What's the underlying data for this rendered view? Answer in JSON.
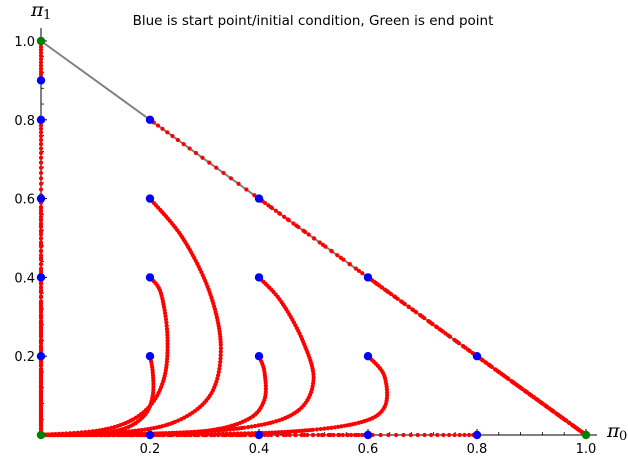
{
  "chart_data": {
    "type": "scatter",
    "title": "Blue is start point/initial condition, Green is end point",
    "xlabel": "π",
    "xlabel_sub": "0",
    "ylabel": "π",
    "ylabel_sub": "1",
    "xlim": [
      0,
      1.0
    ],
    "ylim": [
      0,
      1.0
    ],
    "x_ticks": [
      {
        "value": 0.2,
        "label": "0.2"
      },
      {
        "value": 0.4,
        "label": "0.4"
      },
      {
        "value": 0.6,
        "label": "0.6"
      },
      {
        "value": 0.8,
        "label": "0.8"
      },
      {
        "value": 1.0,
        "label": "1.0"
      }
    ],
    "y_ticks": [
      {
        "value": 0.2,
        "label": "0.2"
      },
      {
        "value": 0.4,
        "label": "0.4"
      },
      {
        "value": 0.6,
        "label": "0.6"
      },
      {
        "value": 0.8,
        "label": "0.8"
      },
      {
        "value": 1.0,
        "label": "1.0"
      }
    ],
    "simplex_edge": {
      "from": [
        0,
        1.0
      ],
      "to": [
        1.0,
        0
      ],
      "color": "#808080"
    },
    "start_points": {
      "color": "#0000ff",
      "points": [
        [
          0,
          0.2
        ],
        [
          0,
          0.4
        ],
        [
          0,
          0.6
        ],
        [
          0,
          0.8
        ],
        [
          0,
          0.9
        ],
        [
          0.2,
          0.2
        ],
        [
          0.2,
          0.4
        ],
        [
          0.2,
          0.6
        ],
        [
          0.2,
          0.8
        ],
        [
          0.4,
          0.2
        ],
        [
          0.4,
          0.4
        ],
        [
          0.4,
          0.6
        ],
        [
          0.6,
          0.2
        ],
        [
          0.6,
          0.4
        ],
        [
          0.8,
          0.2
        ],
        [
          0.2,
          0
        ],
        [
          0.4,
          0
        ],
        [
          0.6,
          0
        ],
        [
          0.8,
          0
        ]
      ]
    },
    "end_points": {
      "color": "#008000",
      "points": [
        [
          0,
          1.0
        ],
        [
          0,
          0
        ],
        [
          1.0,
          0
        ]
      ]
    },
    "trajectories": {
      "color": "#ff0000",
      "paths": [
        [
          [
            0.2,
            0.2
          ],
          [
            0.205,
            0.16
          ],
          [
            0.205,
            0.1
          ],
          [
            0.19,
            0.05
          ],
          [
            0.15,
            0.015
          ],
          [
            0.08,
            0.003
          ],
          [
            0.0,
            0.0
          ]
        ],
        [
          [
            0.2,
            0.4
          ],
          [
            0.22,
            0.36
          ],
          [
            0.232,
            0.25
          ],
          [
            0.225,
            0.14
          ],
          [
            0.19,
            0.06
          ],
          [
            0.12,
            0.015
          ],
          [
            0.0,
            0.0
          ]
        ],
        [
          [
            0.2,
            0.6
          ],
          [
            0.26,
            0.5
          ],
          [
            0.31,
            0.36
          ],
          [
            0.33,
            0.22
          ],
          [
            0.31,
            0.1
          ],
          [
            0.24,
            0.03
          ],
          [
            0.13,
            0.005
          ],
          [
            0.0,
            0.0
          ]
        ],
        [
          [
            0.4,
            0.2
          ],
          [
            0.41,
            0.16
          ],
          [
            0.41,
            0.09
          ],
          [
            0.38,
            0.04
          ],
          [
            0.3,
            0.01
          ],
          [
            0.15,
            0.002
          ],
          [
            0.0,
            0.0
          ]
        ],
        [
          [
            0.4,
            0.4
          ],
          [
            0.44,
            0.34
          ],
          [
            0.48,
            0.24
          ],
          [
            0.5,
            0.14
          ],
          [
            0.47,
            0.06
          ],
          [
            0.38,
            0.02
          ],
          [
            0.2,
            0.003
          ],
          [
            0.0,
            0.0
          ]
        ],
        [
          [
            0.6,
            0.2
          ],
          [
            0.63,
            0.15
          ],
          [
            0.63,
            0.07
          ],
          [
            0.58,
            0.03
          ],
          [
            0.45,
            0.008
          ],
          [
            0.25,
            0.002
          ],
          [
            0.0,
            0.0
          ]
        ],
        [
          [
            0.2,
            0.8
          ],
          [
            1.0,
            0.0
          ]
        ],
        [
          [
            0.4,
            0.6
          ],
          [
            1.0,
            0.0
          ]
        ],
        [
          [
            0.6,
            0.4
          ],
          [
            1.0,
            0.0
          ]
        ],
        [
          [
            0.8,
            0.2
          ],
          [
            1.0,
            0.0
          ]
        ],
        [
          [
            0.2,
            0.0
          ],
          [
            0.0,
            0.0
          ]
        ],
        [
          [
            0.4,
            0.0
          ],
          [
            0.0,
            0.0
          ]
        ],
        [
          [
            0.6,
            0.0
          ],
          [
            0.0,
            0.0
          ]
        ],
        [
          [
            0.8,
            0.0
          ],
          [
            0.0,
            0.0
          ]
        ],
        [
          [
            0.0,
            0.2
          ],
          [
            0.0,
            0.0
          ]
        ],
        [
          [
            0.0,
            0.4
          ],
          [
            0.0,
            0.0
          ]
        ],
        [
          [
            0.0,
            0.6
          ],
          [
            0.0,
            0.0
          ]
        ],
        [
          [
            0.0,
            0.8
          ],
          [
            0.0,
            0.0
          ]
        ],
        [
          [
            0.0,
            0.9
          ],
          [
            0.0,
            1.0
          ]
        ]
      ]
    },
    "grid": false,
    "legend": "none"
  }
}
